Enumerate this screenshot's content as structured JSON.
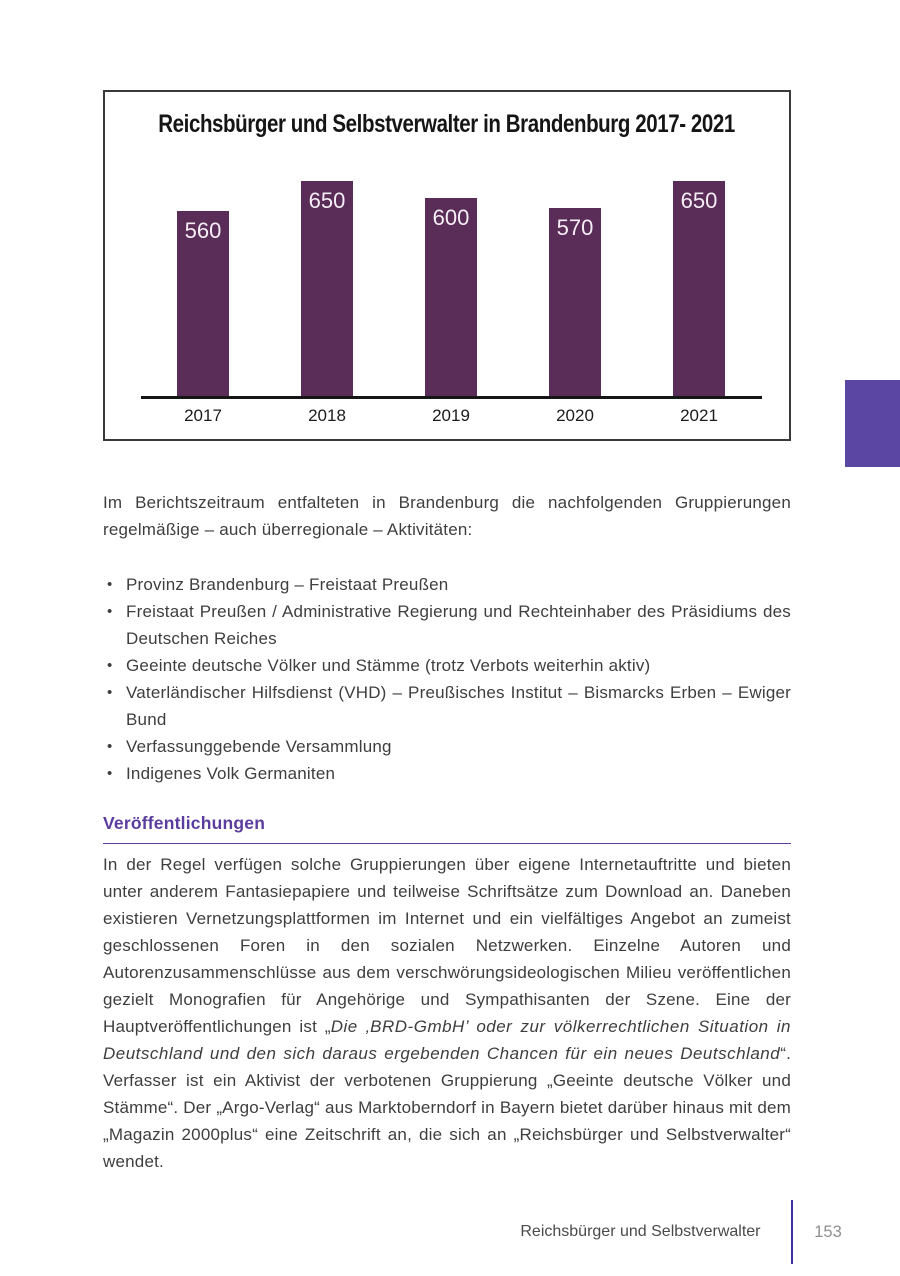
{
  "chart_data": {
    "type": "bar",
    "title": "Reichsbürger und Selbstverwalter in Brandenburg 2017- 2021",
    "categories": [
      "2017",
      "2018",
      "2019",
      "2020",
      "2021"
    ],
    "values": [
      560,
      650,
      600,
      570,
      650
    ],
    "xlabel": "",
    "ylabel": "",
    "ylim": [
      0,
      650
    ],
    "grid": false,
    "legend": false,
    "value_label_position": "inside-top",
    "bar_color": "#5a2c58",
    "value_label_color": "#f5eef5",
    "axis_color": "#161616"
  },
  "content": {
    "intro": "Im Berichtszeitraum entfalteten in Brandenburg die nachfolgenden Gruppierun­gen regelmäßige – auch überregionale – Aktivitäten:",
    "bullets": [
      "Provinz Brandenburg – Freistaat Preußen",
      "Freistaat Preußen / Administrative Regierung und Rechteinhaber des Präsidi­ums des Deutschen Reiches",
      "Geeinte deutsche Völker und Stämme (trotz Verbots weiterhin aktiv)",
      "Vaterländischer Hilfsdienst (VHD) – Preußisches Institut – Bismarcks Erben – Ewiger Bund",
      "Verfassunggebende Versammlung",
      "Indigenes Volk Germaniten"
    ],
    "section": {
      "heading": "Veröffentlichungen",
      "heading_color": "#5a3d9e",
      "paragraph_segments": [
        {
          "style": "normal",
          "text": "In der Regel verfügen solche Gruppierungen über eigene Internetauftritte und bieten unter anderem Fantasiepapiere und teilweise Schriftsätze zum Download an. Daneben existieren Vernetzungsplattformen im Internet und ein vielfältiges Angebot an zumeist geschlossenen Foren in den sozialen Netzwerken. Einzelne Autoren und Autorenzusammenschlüsse aus dem verschwörungsideologischen Milieu veröffentlichen gezielt Monografien für Angehörige und Sympathisanten der Szene. Eine der Hauptveröffentlichungen ist „"
        },
        {
          "style": "italic",
          "text": "Die ‚BRD-GmbH’ oder zur völk­errechtlichen Situation in Deutschland und den sich daraus ergebenden Chancen für ein neues Deutschland"
        },
        {
          "style": "normal",
          "text": "“. Verfasser ist ein Aktivist der verbotenen Gruppierung „Geeinte deutsche Völker und Stämme“. Der „Argo-Verlag“ aus Marktoberndorf in Bayern bietet darüber hinaus mit dem „Magazin 2000plus“ eine Zeitschrift an, die sich an „Reichsbürger und Selbstverwalter“ wendet."
        }
      ]
    }
  },
  "footer": {
    "section_title": "Reichsbürger und Selbstverwalter",
    "page_number": "153",
    "divider_color": "#3c319a"
  },
  "decor": {
    "side_tab_color": "#5c46a4"
  }
}
